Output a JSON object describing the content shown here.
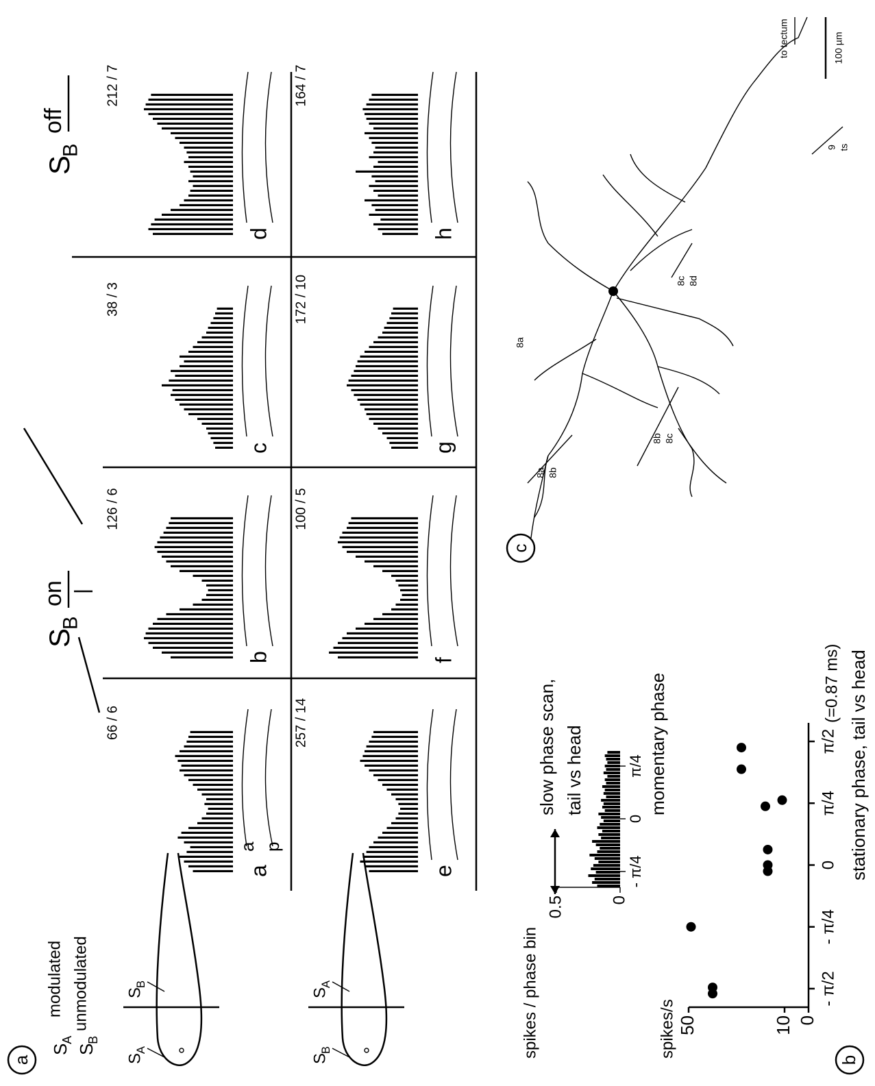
{
  "panel_a": {
    "label": "a",
    "legend": [
      {
        "symbol": "S",
        "sub": "A",
        "text": "modulated"
      },
      {
        "symbol": "S",
        "sub": "B",
        "text": "unmodulated"
      }
    ],
    "fish": [
      {
        "front": {
          "symbol": "S",
          "sub": "A"
        },
        "back": {
          "symbol": "S",
          "sub": "B"
        }
      },
      {
        "front": {
          "symbol": "S",
          "sub": "B"
        },
        "back": {
          "symbol": "S",
          "sub": "A"
        }
      }
    ],
    "headers": [
      {
        "symbol": "S",
        "sub": "B",
        "text": "on"
      },
      {
        "symbol": "S",
        "sub": "B",
        "text": "off"
      }
    ],
    "trace_labels": [
      "a",
      "p"
    ],
    "panels": [
      {
        "label": "a",
        "count": "66 / 6",
        "bars": [
          45,
          50,
          55,
          60,
          52,
          48,
          55,
          62,
          58,
          50,
          40,
          35,
          30,
          28,
          32,
          30,
          35,
          40,
          45,
          50,
          55,
          60,
          58,
          62,
          65,
          60,
          55,
          52,
          50,
          48
        ]
      },
      {
        "label": "b",
        "count": "126 / 6",
        "bars": [
          70,
          80,
          90,
          95,
          100,
          98,
          95,
          90,
          85,
          75,
          60,
          45,
          35,
          30,
          28,
          30,
          35,
          45,
          60,
          70,
          75,
          80,
          85,
          88,
          85,
          82,
          78,
          75,
          72,
          70
        ]
      },
      {
        "label": "c",
        "count": "38 / 3",
        "bars": [
          20,
          22,
          25,
          28,
          30,
          35,
          40,
          50,
          55,
          60,
          65,
          70,
          68,
          80,
          72,
          65,
          70,
          60,
          55,
          60,
          50,
          45,
          40,
          35,
          30,
          28,
          25,
          22,
          20,
          18
        ]
      },
      {
        "label": "d",
        "count": "212 / 7",
        "bars": [
          90,
          95,
          92,
          88,
          80,
          70,
          60,
          55,
          50,
          48,
          45,
          50,
          45,
          48,
          50,
          55,
          50,
          52,
          55,
          60,
          65,
          70,
          80,
          85,
          90,
          95,
          100,
          98,
          95,
          92
        ]
      },
      {
        "label": "e",
        "count": "257 / 14",
        "bars": [
          55,
          60,
          65,
          62,
          58,
          55,
          50,
          45,
          40,
          35,
          30,
          25,
          22,
          20,
          22,
          25,
          30,
          35,
          40,
          45,
          50,
          55,
          60,
          65,
          62,
          60,
          58,
          55,
          52,
          50
        ]
      },
      {
        "label": "f",
        "count": "100 / 5",
        "bars": [
          90,
          100,
          95,
          90,
          85,
          80,
          70,
          60,
          50,
          40,
          30,
          25,
          20,
          18,
          20,
          22,
          25,
          30,
          40,
          50,
          60,
          70,
          80,
          85,
          90,
          88,
          85,
          80,
          78,
          75
        ]
      },
      {
        "label": "g",
        "count": "172 / 10",
        "bars": [
          30,
          32,
          35,
          40,
          45,
          50,
          55,
          58,
          60,
          65,
          68,
          72,
          75,
          80,
          78,
          75,
          72,
          70,
          68,
          65,
          60,
          55,
          50,
          45,
          40,
          38,
          35,
          32,
          30,
          28
        ]
      },
      {
        "label": "h",
        "count": "164 / 7",
        "bars": [
          40,
          45,
          50,
          42,
          55,
          48,
          52,
          60,
          45,
          50,
          55,
          48,
          52,
          70,
          50,
          45,
          55,
          50,
          48,
          52,
          55,
          60,
          50,
          55,
          58,
          60,
          62,
          58,
          55,
          52
        ]
      }
    ]
  },
  "panel_b": {
    "label": "b",
    "inset": {
      "y_label": "spikes / phase bin",
      "ylim": [
        0,
        0.5
      ],
      "yticks": [
        0.5,
        0
      ],
      "xlim": [
        -1.3,
        1.3
      ],
      "xticks": [
        {
          "value": -1,
          "label": "- π/4"
        },
        0,
        {
          "value": 1,
          "label": "π/4"
        }
      ],
      "x_label": "momentary phase",
      "arrow_label": [
        "slow phase scan,",
        "tail vs head"
      ],
      "bars": [
        0.18,
        0.22,
        0.2,
        0.25,
        0.19,
        0.23,
        0.21,
        0.17,
        0.2,
        0.24,
        0.18,
        0.16,
        0.19,
        0.22,
        0.15,
        0.17,
        0.14,
        0.18,
        0.16,
        0.13,
        0.15,
        0.17,
        0.12,
        0.14,
        0.13,
        0.15,
        0.11,
        0.13,
        0.12,
        0.14,
        0.11,
        0.12,
        0.1,
        0.13,
        0.11,
        0.12,
        0.1,
        0.11,
        0.12,
        0.1
      ]
    },
    "scatter": {
      "type": "scatter",
      "y_label": "spikes/s",
      "ylim": [
        0,
        50
      ],
      "yticks": [
        0,
        10,
        50
      ],
      "xlim": [
        -2.3,
        2.3
      ],
      "xticks": [
        {
          "value": -2,
          "label": "- π/2"
        },
        {
          "value": -1,
          "label": "- π/4"
        },
        0,
        {
          "value": 1,
          "label": "π/4"
        },
        {
          "value": 2,
          "label": "π/2"
        }
      ],
      "x": [
        -2.08,
        -1.98,
        -1.0,
        -0.1,
        0,
        0.25,
        0.95,
        1.05,
        1.55,
        1.9
      ],
      "y": [
        40,
        40,
        49,
        17,
        17,
        17,
        18,
        11,
        28,
        28
      ],
      "x_note": "(=0.87 ms)",
      "x_label": "stationary phase, tail vs head"
    }
  },
  "panel_c": {
    "label": "c",
    "region_labels": [
      {
        "text": "8a",
        "sub_text": "8b"
      },
      {
        "text": "8b",
        "sub_text": "8c"
      },
      {
        "text": "8a"
      },
      {
        "text": "8c",
        "sub_text": "8d"
      },
      {
        "text": "9",
        "sub_text": "ts"
      }
    ],
    "to_tectum": "to tectum",
    "scale": "100 µm"
  }
}
